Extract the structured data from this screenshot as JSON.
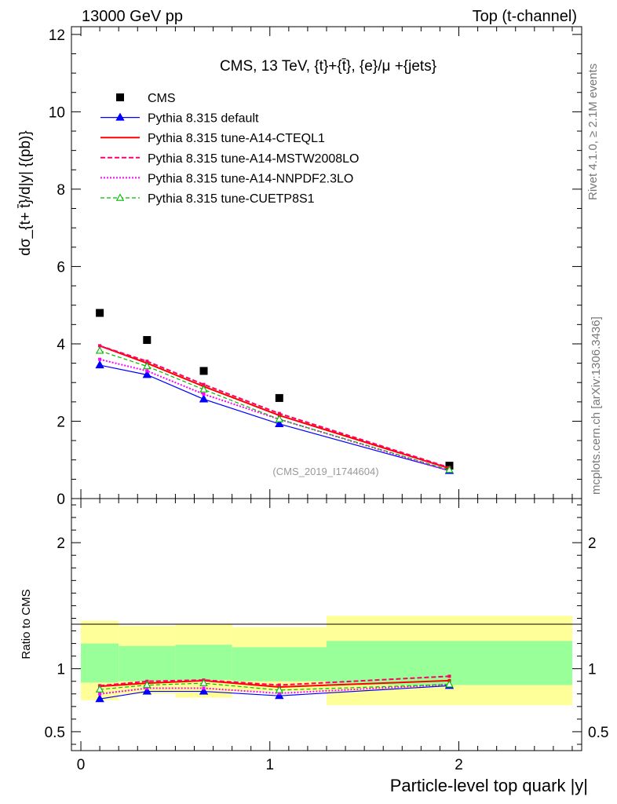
{
  "header": {
    "left": "13000 GeV pp",
    "right": "Top (t-channel)",
    "side_top": "Rivet 4.1.0, ≥ 2.1M events",
    "side_bottom": "mcplots.cern.ch [arXiv:1306.3436]"
  },
  "colors": {
    "cms": "#000000",
    "default": "#0000ff",
    "cteql1": "#ff0000",
    "mstw": "#ff0066",
    "nnpdf": "#ff00ff",
    "cuetp8s1": "#00bb00",
    "band_inner": "#99ff99",
    "band_outer": "#ffff99"
  },
  "chart_data": [
    {
      "type": "line",
      "panel": "main",
      "title": "CMS, 13 TeV, {t}+{t̄}, {e}/μ +{jets}",
      "ylabel": "dσ_{t+ t̄}/d|y| {(pb)}",
      "xlabel": "",
      "xlim": [
        -0.05,
        2.65
      ],
      "ylim": [
        0,
        12.2
      ],
      "yticks": [
        0,
        2,
        4,
        6,
        8,
        10,
        12
      ],
      "ytick_labels": [
        "0",
        "2",
        "4",
        "6",
        "8",
        "10",
        "12"
      ],
      "annotation": "(CMS_2019_I1744604)",
      "x": [
        0.1,
        0.35,
        0.65,
        1.05,
        1.95
      ],
      "series": [
        {
          "key": "cms",
          "name": "CMS",
          "style": "square",
          "values": [
            4.8,
            4.1,
            3.3,
            2.6,
            0.85
          ]
        },
        {
          "key": "default",
          "name": "Pythia 8.315 default",
          "style": "line-triangle",
          "values": [
            3.45,
            3.2,
            2.57,
            1.93,
            0.72
          ]
        },
        {
          "key": "cteql1",
          "name": "Pythia 8.315 tune-A14-CTEQL1",
          "style": "solid",
          "values": [
            3.95,
            3.5,
            2.9,
            2.15,
            0.78
          ]
        },
        {
          "key": "mstw",
          "name": "Pythia 8.315 tune-A14-MSTW2008LO",
          "style": "dashed",
          "values": [
            3.95,
            3.55,
            2.95,
            2.2,
            0.8
          ]
        },
        {
          "key": "nnpdf",
          "name": "Pythia 8.315 tune-A14-NNPDF2.3LO",
          "style": "dotted",
          "values": [
            3.6,
            3.3,
            2.7,
            2.05,
            0.72
          ]
        },
        {
          "key": "cuetp8s1",
          "name": "Pythia 8.315 tune-CUETP8S1",
          "style": "dashed-open-triangle",
          "values": [
            3.82,
            3.42,
            2.82,
            2.05,
            0.74
          ]
        }
      ]
    },
    {
      "type": "line",
      "panel": "ratio",
      "ylabel": "Ratio to CMS",
      "xlabel": "Particle-level top quark |y|",
      "xlim": [
        -0.05,
        2.65
      ],
      "ylim": [
        0.35,
        2.35
      ],
      "yticks": [
        0.5,
        1,
        2
      ],
      "ytick_labels": [
        "0.5",
        "1",
        "2"
      ],
      "xticks": [
        0,
        1,
        2
      ],
      "xtick_labels": [
        "0",
        "1",
        "2"
      ],
      "bins": [
        [
          0,
          0.2
        ],
        [
          0.2,
          0.5
        ],
        [
          0.5,
          0.8
        ],
        [
          0.8,
          1.3
        ],
        [
          1.3,
          2.6
        ]
      ],
      "band_inner": [
        [
          0.89,
          1.2
        ],
        [
          0.9,
          1.18
        ],
        [
          0.91,
          1.19
        ],
        [
          0.9,
          1.17
        ],
        [
          0.87,
          1.22
        ]
      ],
      "band_outer": [
        [
          0.75,
          1.38
        ],
        [
          0.8,
          1.34
        ],
        [
          0.77,
          1.35
        ],
        [
          0.82,
          1.33
        ],
        [
          0.71,
          1.42
        ]
      ],
      "x": [
        0.1,
        0.35,
        0.65,
        1.05,
        1.95
      ],
      "series": [
        {
          "key": "default",
          "name": "Pythia 8.315 default",
          "values": [
            0.76,
            0.82,
            0.82,
            0.785,
            0.865
          ]
        },
        {
          "key": "cteql1",
          "name": "Pythia 8.315 tune-A14-CTEQL1",
          "values": [
            0.86,
            0.885,
            0.905,
            0.855,
            0.905
          ]
        },
        {
          "key": "mstw",
          "name": "Pythia 8.315 tune-A14-MSTW2008LO",
          "values": [
            0.865,
            0.9,
            0.91,
            0.87,
            0.94
          ]
        },
        {
          "key": "nnpdf",
          "name": "Pythia 8.315 tune-A14-NNPDF2.3LO",
          "values": [
            0.8,
            0.845,
            0.845,
            0.805,
            0.875
          ]
        },
        {
          "key": "cuetp8s1",
          "name": "Pythia 8.315 tune-CUETP8S1",
          "values": [
            0.835,
            0.87,
            0.885,
            0.83,
            0.875
          ]
        }
      ]
    }
  ]
}
